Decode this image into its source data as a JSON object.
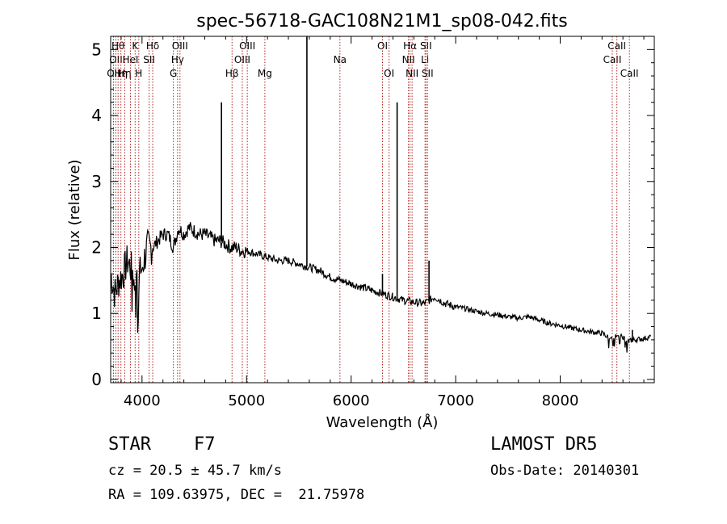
{
  "chart_data": {
    "type": "line",
    "title": "spec-56718-GAC108N21M1_sp08-042.fits",
    "xlabel": "Wavelength (Å)",
    "ylabel": "Flux (relative)",
    "xlim": [
      3700,
      8900
    ],
    "ylim": [
      -0.05,
      5.2
    ],
    "xticks": [
      4000,
      5000,
      6000,
      7000,
      8000
    ],
    "yticks": [
      0,
      1,
      2,
      3,
      4,
      5
    ],
    "grid": false,
    "line_color": "#000000",
    "marker_color": "#b22222",
    "series": [
      {
        "x": [
          3700,
          3740,
          3780,
          3820,
          3860,
          3890,
          3920,
          3960,
          4000,
          4050,
          4100,
          4150,
          4200,
          4250,
          4300,
          4350,
          4400,
          4450,
          4500,
          4550,
          4600,
          4650,
          4700,
          4750,
          4800,
          4850,
          4900,
          4950,
          5000,
          5100,
          5200,
          5300,
          5400,
          5500,
          5600,
          5700,
          5800,
          5900,
          6000,
          6100,
          6200,
          6300,
          6400,
          6500,
          6600,
          6700,
          6800,
          6850,
          6900,
          7000,
          7100,
          7200,
          7300,
          7400,
          7500,
          7600,
          7700,
          7800,
          7900,
          8000,
          8100,
          8200,
          8300,
          8400,
          8500,
          8550,
          8600,
          8650,
          8700,
          8800,
          8870
        ],
        "y": [
          1.6,
          1.3,
          1.5,
          1.6,
          1.8,
          1.7,
          1.6,
          1.5,
          1.7,
          2.0,
          2.0,
          2.1,
          2.2,
          2.2,
          2.0,
          2.3,
          2.2,
          2.3,
          2.25,
          2.2,
          2.2,
          2.15,
          2.1,
          2.1,
          2.05,
          2.0,
          2.0,
          1.95,
          1.95,
          1.9,
          1.85,
          1.8,
          1.8,
          1.75,
          1.7,
          1.65,
          1.55,
          1.5,
          1.45,
          1.4,
          1.35,
          1.3,
          1.25,
          1.2,
          1.17,
          1.15,
          1.25,
          1.2,
          1.15,
          1.1,
          1.07,
          1.03,
          1.0,
          0.98,
          0.95,
          0.93,
          0.95,
          0.9,
          0.85,
          0.82,
          0.78,
          0.75,
          0.72,
          0.7,
          0.6,
          0.7,
          0.62,
          0.58,
          0.6,
          0.62,
          0.65
        ]
      }
    ],
    "spikes": [
      {
        "x": 4760,
        "y": 4.2
      },
      {
        "x": 5577,
        "y": 5.2
      },
      {
        "x": 6300,
        "y": 1.6
      },
      {
        "x": 6440,
        "y": 4.2
      },
      {
        "x": 6745,
        "y": 1.8
      },
      {
        "x": 8690,
        "y": 0.75
      }
    ],
    "line_markers": [
      {
        "x": 3727,
        "label": "OII",
        "row": 3
      },
      {
        "x": 3750,
        "label": "OII",
        "row": 2
      },
      {
        "x": 3771,
        "label": "Hθ",
        "row": 1
      },
      {
        "x": 3798,
        "label": "Hη",
        "row": 3
      },
      {
        "x": 3835,
        "label": "Hη",
        "row": 3
      },
      {
        "x": 3889,
        "label": "HeI",
        "row": 2
      },
      {
        "x": 3934,
        "label": "K",
        "row": 1
      },
      {
        "x": 3969,
        "label": "H",
        "row": 3
      },
      {
        "x": 4068,
        "label": "SII",
        "row": 2
      },
      {
        "x": 4102,
        "label": "Hδ",
        "row": 1
      },
      {
        "x": 4300,
        "label": "G",
        "row": 3
      },
      {
        "x": 4340,
        "label": "Hγ",
        "row": 2
      },
      {
        "x": 4363,
        "label": "OIII",
        "row": 1
      },
      {
        "x": 4861,
        "label": "Hβ",
        "row": 3
      },
      {
        "x": 4959,
        "label": "OIII",
        "row": 2
      },
      {
        "x": 5007,
        "label": "OIII",
        "row": 1
      },
      {
        "x": 5175,
        "label": "Mg",
        "row": 3
      },
      {
        "x": 5893,
        "label": "Na",
        "row": 2
      },
      {
        "x": 6300,
        "label": "OI",
        "row": 1
      },
      {
        "x": 6363,
        "label": "OI",
        "row": 3
      },
      {
        "x": 6548,
        "label": "NII",
        "row": 2
      },
      {
        "x": 6563,
        "label": "Hα",
        "row": 1
      },
      {
        "x": 6583,
        "label": "NII",
        "row": 3
      },
      {
        "x": 6707,
        "label": "Li",
        "row": 2
      },
      {
        "x": 6716,
        "label": "SII",
        "row": 1
      },
      {
        "x": 6731,
        "label": "SII",
        "row": 3
      },
      {
        "x": 8498,
        "label": "CaII",
        "row": 2
      },
      {
        "x": 8542,
        "label": "CaII",
        "row": 1
      },
      {
        "x": 8662,
        "label": "CaII",
        "row": 3
      }
    ]
  },
  "info": {
    "class_text": "STAR    F7",
    "survey": "LAMOST DR5",
    "velocity": "cz = 20.5 ± 45.7 km/s",
    "obs_date": "Obs-Date: 20140301",
    "coords": "RA = 109.63975, DEC =  21.75978"
  }
}
